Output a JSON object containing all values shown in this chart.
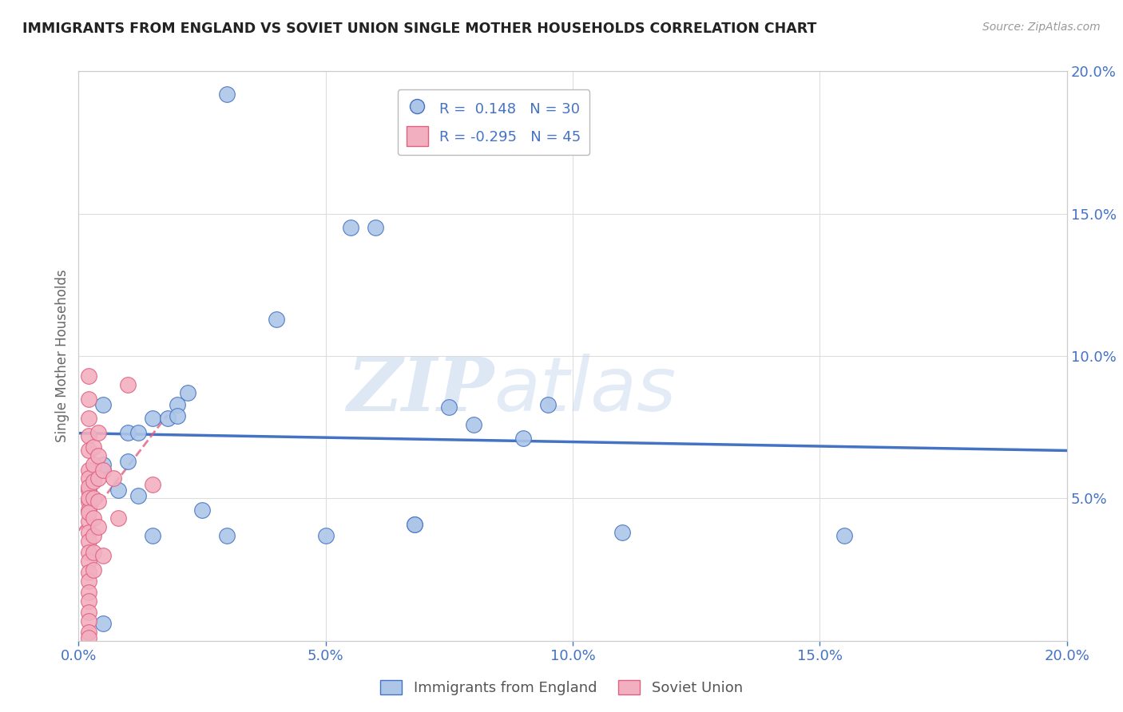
{
  "title": "IMMIGRANTS FROM ENGLAND VS SOVIET UNION SINGLE MOTHER HOUSEHOLDS CORRELATION CHART",
  "source": "Source: ZipAtlas.com",
  "ylabel": "Single Mother Households",
  "xlim": [
    0,
    0.2
  ],
  "ylim": [
    0,
    0.2
  ],
  "xticks": [
    0.0,
    0.05,
    0.1,
    0.15,
    0.2
  ],
  "yticks": [
    0.05,
    0.1,
    0.15,
    0.2
  ],
  "england_R": 0.148,
  "england_N": 30,
  "soviet_R": -0.295,
  "soviet_N": 45,
  "england_color": "#adc6e8",
  "soviet_color": "#f2afc0",
  "england_line_color": "#4472c4",
  "soviet_line_color": "#e06080",
  "england_x": [
    0.03,
    0.005,
    0.01,
    0.008,
    0.01,
    0.012,
    0.015,
    0.018,
    0.02,
    0.02,
    0.022,
    0.025,
    0.055,
    0.06,
    0.015,
    0.068,
    0.068,
    0.075,
    0.095,
    0.005,
    0.005,
    0.09,
    0.08,
    0.11,
    0.155,
    0.005,
    0.012,
    0.04,
    0.05,
    0.03
  ],
  "england_y": [
    0.192,
    0.06,
    0.063,
    0.053,
    0.073,
    0.073,
    0.078,
    0.078,
    0.083,
    0.079,
    0.087,
    0.046,
    0.145,
    0.145,
    0.037,
    0.041,
    0.041,
    0.082,
    0.083,
    0.083,
    0.006,
    0.071,
    0.076,
    0.038,
    0.037,
    0.062,
    0.051,
    0.113,
    0.037,
    0.037
  ],
  "soviet_x": [
    0.002,
    0.002,
    0.002,
    0.002,
    0.002,
    0.002,
    0.002,
    0.002,
    0.002,
    0.002,
    0.002,
    0.002,
    0.002,
    0.002,
    0.002,
    0.002,
    0.002,
    0.002,
    0.002,
    0.002,
    0.002,
    0.002,
    0.002,
    0.002,
    0.002,
    0.002,
    0.003,
    0.003,
    0.003,
    0.003,
    0.003,
    0.003,
    0.003,
    0.003,
    0.004,
    0.004,
    0.004,
    0.004,
    0.004,
    0.005,
    0.005,
    0.007,
    0.008,
    0.01,
    0.015
  ],
  "soviet_y": [
    0.093,
    0.085,
    0.078,
    0.072,
    0.067,
    0.06,
    0.057,
    0.053,
    0.049,
    0.046,
    0.042,
    0.038,
    0.035,
    0.031,
    0.028,
    0.024,
    0.021,
    0.017,
    0.014,
    0.01,
    0.007,
    0.003,
    0.001,
    0.054,
    0.05,
    0.045,
    0.068,
    0.062,
    0.056,
    0.05,
    0.043,
    0.037,
    0.031,
    0.025,
    0.073,
    0.065,
    0.057,
    0.049,
    0.04,
    0.06,
    0.03,
    0.057,
    0.043,
    0.09,
    0.055
  ],
  "watermark_zip": "ZIP",
  "watermark_atlas": "atlas",
  "background_color": "#ffffff",
  "grid_color": "#dddddd"
}
